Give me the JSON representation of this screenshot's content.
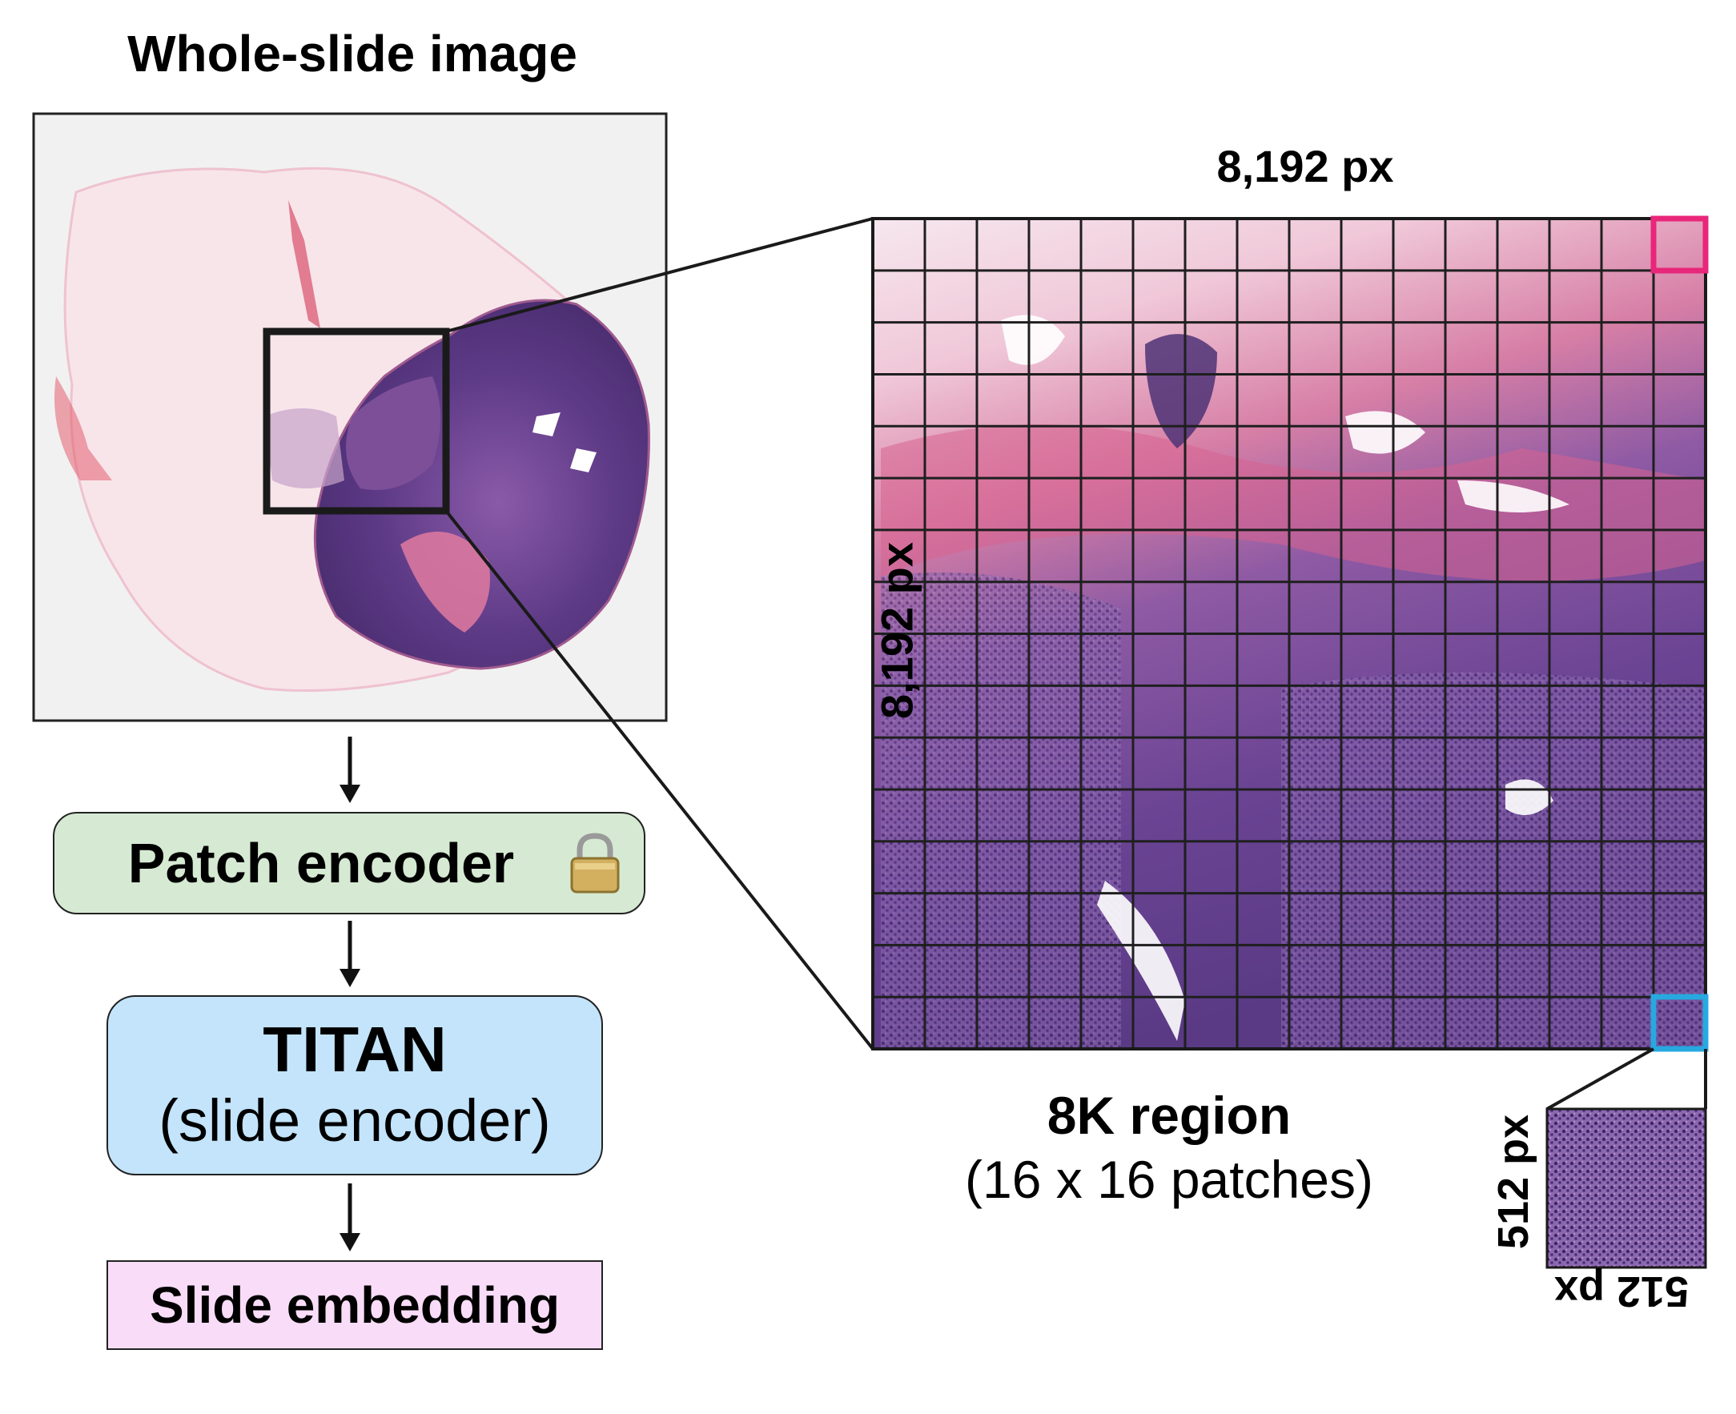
{
  "wsi": {
    "title": "Whole-slide image"
  },
  "pipeline": {
    "patch_encoder": "Patch encoder",
    "titan_title": "TITAN",
    "titan_subtitle": "(slide encoder)",
    "slide_embedding": "Slide embedding"
  },
  "region": {
    "width_label": "8,192 px",
    "height_label": "8,192 px",
    "title": "8K region",
    "subtitle": "(16 x 16 patches)",
    "grid_rows": 16,
    "grid_cols": 16
  },
  "patch": {
    "side_label": "512 px",
    "bottom_label": "512 px"
  },
  "colors": {
    "tissue_pink": "#e6a6c0",
    "tissue_purple": "#5d3a86",
    "highlight_top": "#e8267a",
    "highlight_bottom": "#27a9e0",
    "patch_encoder_bg": "#d6ead3",
    "titan_bg": "#c3e4fb",
    "embedding_bg": "#f9dcf7"
  },
  "icons": {
    "lock": "lock-icon"
  }
}
